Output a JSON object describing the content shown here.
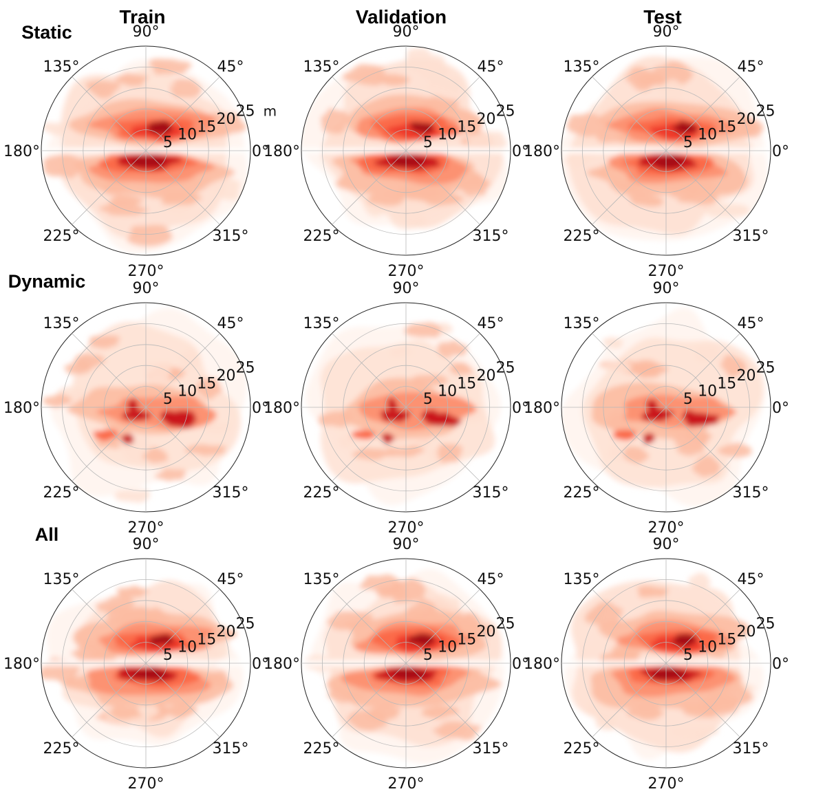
{
  "chart_data": {
    "type": "heatmap",
    "projection": "polar",
    "column_titles": [
      "Train",
      "Validation",
      "Test"
    ],
    "row_titles": [
      "Static",
      "Dynamic",
      "All"
    ],
    "radial_ticks": [
      5,
      10,
      15,
      20,
      25
    ],
    "radial_max": 25,
    "radial_unit": "m",
    "angle_ticks_deg": [
      0,
      45,
      90,
      135,
      180,
      225,
      270,
      315
    ],
    "angle_labels": [
      "0°",
      "45°",
      "90°",
      "135°",
      "180°",
      "225°",
      "270°",
      "315°"
    ],
    "grid": true,
    "colormap": "Reds",
    "colors": [
      "#fff5f0",
      "#fee0d2",
      "#fcbba1",
      "#fc9272",
      "#fb6a4a",
      "#ef3b2c",
      "#cb181d",
      "#a50f15"
    ],
    "density_hotspots": {
      "Static": [
        {
          "angle": 45,
          "r": 7
        },
        {
          "angle": 90,
          "r": 6
        },
        {
          "angle": 300,
          "r": 3
        },
        {
          "angle": 260,
          "r": 2
        },
        {
          "angle": 180,
          "r": 3
        }
      ],
      "Dynamic": [
        {
          "angle": 355,
          "r": 7
        },
        {
          "angle": 170,
          "r": 2
        },
        {
          "angle": 215,
          "r": 8
        }
      ],
      "All": [
        {
          "angle": 60,
          "r": 6
        },
        {
          "angle": 300,
          "r": 4
        },
        {
          "angle": 230,
          "r": 2
        }
      ]
    }
  }
}
